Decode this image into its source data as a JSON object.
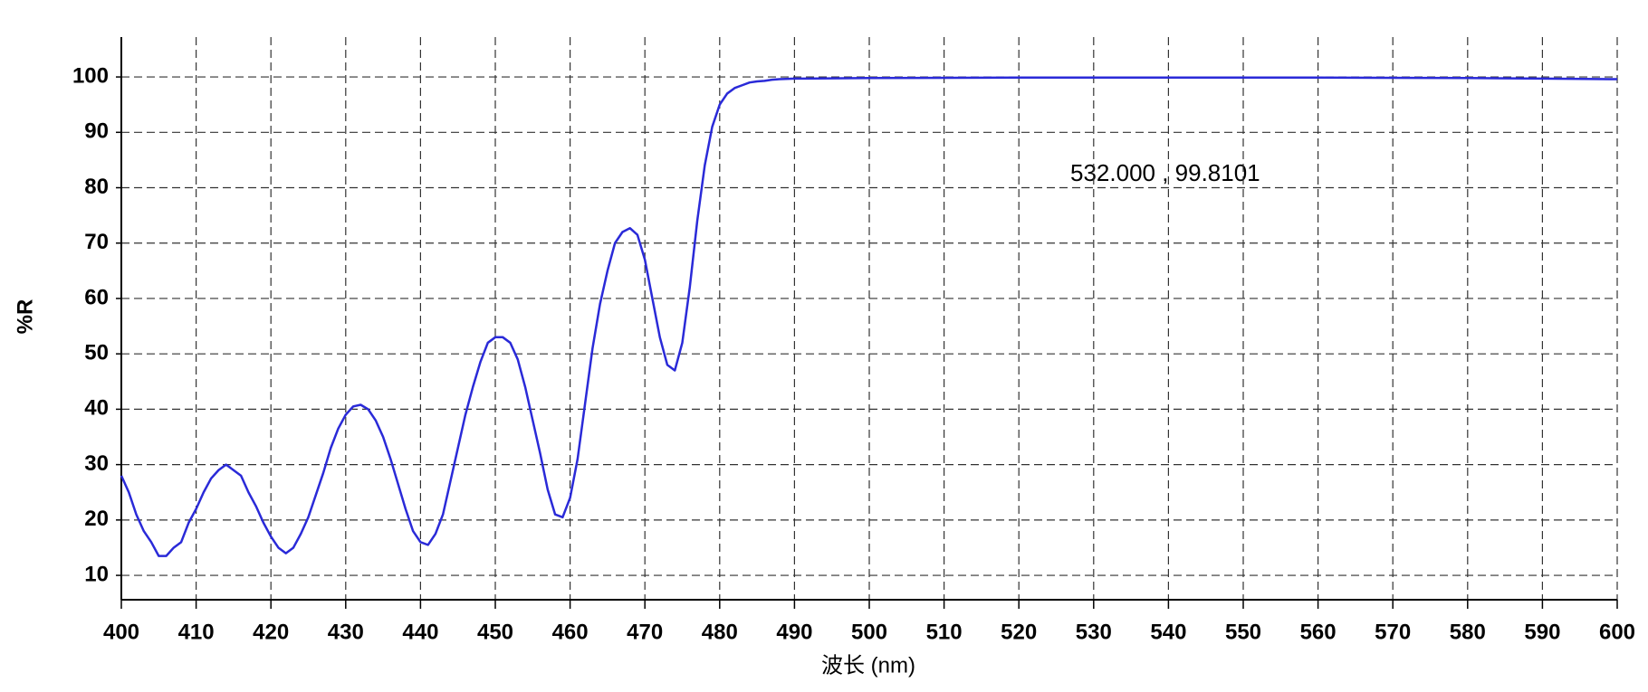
{
  "chart_data": {
    "type": "line",
    "x_label": "波长 (nm)",
    "y_label": "%R",
    "annotation": "532.000 , 99.8101",
    "x": [
      400,
      401,
      402,
      403,
      404,
      405,
      406,
      407,
      408,
      409,
      410,
      411,
      412,
      413,
      414,
      415,
      416,
      417,
      418,
      419,
      420,
      421,
      422,
      423,
      424,
      425,
      426,
      427,
      428,
      429,
      430,
      431,
      432,
      433,
      434,
      435,
      436,
      437,
      438,
      439,
      440,
      441,
      442,
      443,
      444,
      445,
      446,
      447,
      448,
      449,
      450,
      451,
      452,
      453,
      454,
      455,
      456,
      457,
      458,
      459,
      460,
      461,
      462,
      463,
      464,
      465,
      466,
      467,
      468,
      469,
      470,
      471,
      472,
      473,
      474,
      475,
      476,
      477,
      478,
      479,
      480,
      481,
      482,
      483,
      484,
      485,
      486,
      487,
      488,
      490,
      500,
      520,
      540,
      560,
      580,
      590,
      600
    ],
    "series": [
      {
        "name": "%R",
        "color": "#2a2ad8",
        "values": [
          28,
          25,
          21,
          18,
          16,
          13.5,
          13.5,
          15,
          16,
          19.5,
          22,
          25,
          27.5,
          29,
          30,
          29,
          28,
          25,
          22.5,
          19.5,
          17,
          15,
          14,
          15,
          17.5,
          20.5,
          24.5,
          28.5,
          33,
          36.5,
          39,
          40.5,
          40.8,
          40,
          38,
          35,
          31,
          26.5,
          22,
          18,
          16,
          15.5,
          17.5,
          21,
          27,
          33,
          39,
          44,
          48.5,
          52,
          53,
          53,
          52,
          49,
          44,
          38,
          32,
          25.5,
          21,
          20.5,
          24,
          31,
          41,
          51,
          59,
          65,
          70,
          72,
          72.7,
          71.5,
          67,
          60,
          53,
          48,
          47,
          52,
          62,
          74,
          84,
          91,
          95,
          97,
          98,
          98.5,
          99,
          99.2,
          99.3,
          99.5,
          99.6,
          99.7,
          99.8,
          99.9,
          99.9,
          99.9,
          99.8,
          99.7,
          99.6
        ]
      }
    ],
    "xlim": [
      400,
      600
    ],
    "ylim": [
      5.6,
      107.2
    ],
    "xticks": [
      400,
      410,
      420,
      430,
      440,
      450,
      460,
      470,
      480,
      490,
      500,
      510,
      520,
      530,
      540,
      550,
      560,
      570,
      580,
      590,
      600
    ],
    "yticks": [
      10,
      20,
      30,
      40,
      50,
      60,
      70,
      80,
      90,
      100
    ],
    "grid": true
  }
}
